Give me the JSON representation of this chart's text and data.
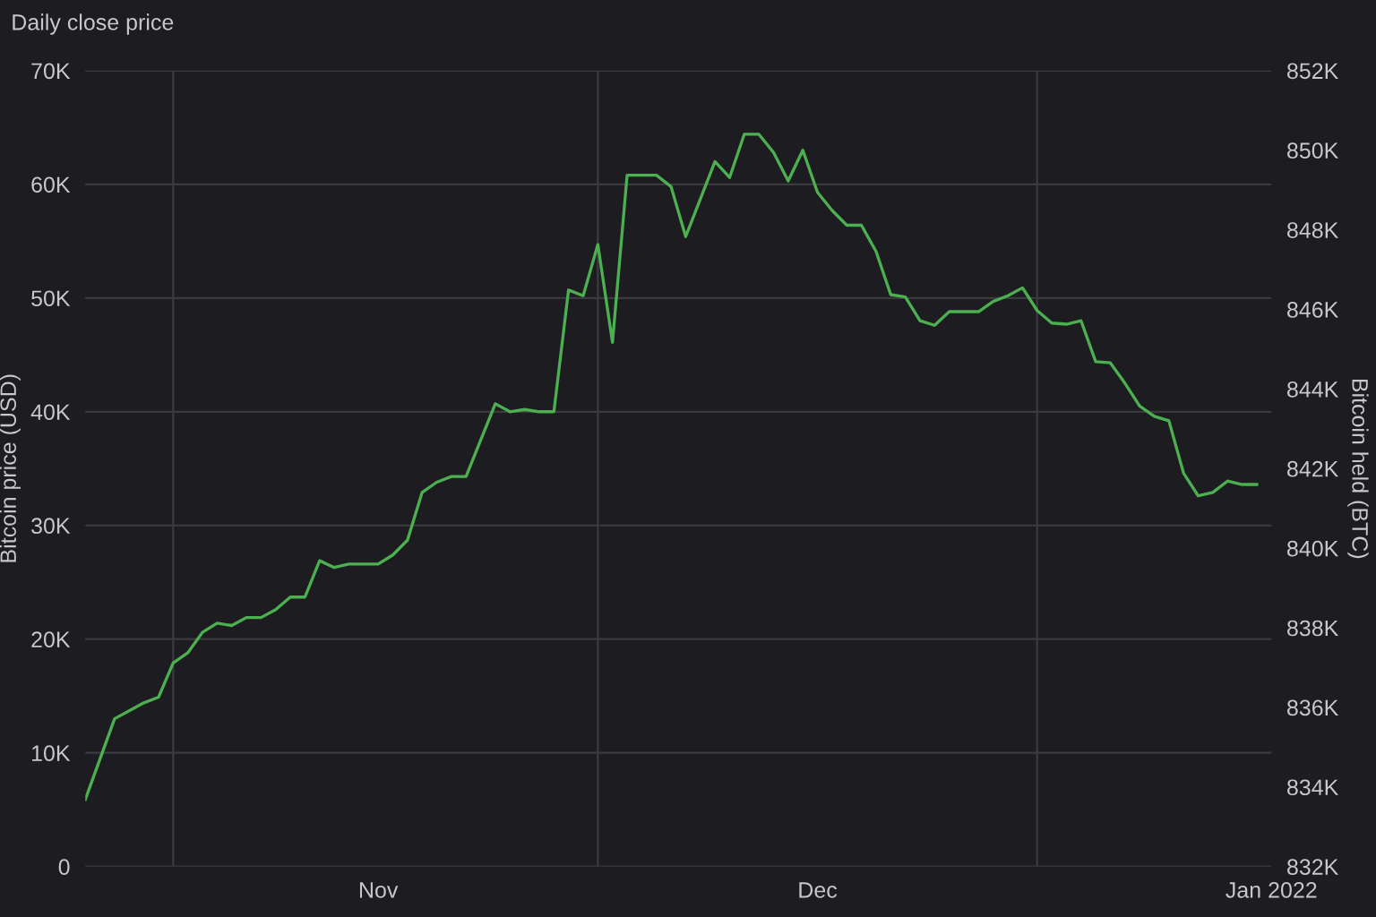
{
  "chart_data": {
    "type": "line",
    "title": "Daily close price",
    "ylabel": "Bitcoin price (USD)",
    "y2label": "Bitcoin held (BTC)",
    "x": [
      "2021-10-12",
      "2021-10-14",
      "2021-10-16",
      "2021-10-17",
      "2021-10-18",
      "2021-10-19",
      "2021-10-20",
      "2021-10-21",
      "2021-10-22",
      "2021-10-23",
      "2021-10-24",
      "2021-10-25",
      "2021-10-26",
      "2021-10-27",
      "2021-10-28",
      "2021-10-29",
      "2021-10-30",
      "2021-11-01",
      "2021-11-02",
      "2021-11-03",
      "2021-11-04",
      "2021-11-05",
      "2021-11-06",
      "2021-11-07",
      "2021-11-09",
      "2021-11-10",
      "2021-11-11",
      "2021-11-12",
      "2021-11-13",
      "2021-11-14",
      "2021-11-15",
      "2021-11-16",
      "2021-11-17",
      "2021-11-18",
      "2021-11-20",
      "2021-11-21",
      "2021-11-22",
      "2021-11-24",
      "2021-11-25",
      "2021-11-26",
      "2021-11-27",
      "2021-11-28",
      "2021-11-29",
      "2021-11-30",
      "2021-12-01",
      "2021-12-02",
      "2021-12-03",
      "2021-12-04",
      "2021-12-05",
      "2021-12-06",
      "2021-12-07",
      "2021-12-08",
      "2021-12-09",
      "2021-12-10",
      "2021-12-12",
      "2021-12-13",
      "2021-12-14",
      "2021-12-15",
      "2021-12-16",
      "2021-12-17",
      "2021-12-18",
      "2021-12-19",
      "2021-12-20",
      "2021-12-21",
      "2021-12-22",
      "2021-12-23",
      "2021-12-24",
      "2021-12-25",
      "2021-12-26",
      "2021-12-27",
      "2021-12-28",
      "2021-12-29",
      "2021-12-30",
      "2021-12-31"
    ],
    "series": [
      {
        "color": "#4caf50",
        "values": [
          5900,
          13000,
          14400,
          14900,
          17900,
          18800,
          20600,
          21400,
          21200,
          21900,
          21900,
          22600,
          23700,
          23700,
          26900,
          26300,
          26600,
          26600,
          27400,
          28700,
          32900,
          33800,
          34300,
          34300,
          40700,
          40000,
          40200,
          40000,
          40000,
          50700,
          50200,
          54700,
          46100,
          60800,
          60800,
          59800,
          55400,
          62000,
          60600,
          64400,
          64400,
          62800,
          60300,
          63000,
          59300,
          57700,
          56400,
          56400,
          54100,
          50300,
          50100,
          48000,
          47600,
          48800,
          48800,
          49700,
          50200,
          50900,
          48900,
          47800,
          47700,
          48000,
          44400,
          44300,
          42500,
          40500,
          39600,
          39200,
          34600,
          32600,
          32900,
          33900,
          33600,
          33600
        ]
      }
    ],
    "xlim": [
      "2021-10-12",
      "2022-01-01"
    ],
    "xticks": [
      {
        "value": "2021-10-18",
        "label": null
      },
      {
        "value": "2021-11-01",
        "label": "Nov"
      },
      {
        "value": "2021-11-16",
        "label": null
      },
      {
        "value": "2021-12-01",
        "label": "Dec"
      },
      {
        "value": "2021-12-16",
        "label": null
      },
      {
        "value": "2022-01-01",
        "label": "Jan 2022"
      }
    ],
    "ylim": [
      0,
      70000
    ],
    "yticks": [
      0,
      {
        "value": 10000,
        "label": "10K"
      },
      {
        "value": 20000,
        "label": "20K"
      },
      {
        "value": 30000,
        "label": "30K"
      },
      {
        "value": 40000,
        "label": "40K"
      },
      {
        "value": 50000,
        "label": "50K"
      },
      {
        "value": 60000,
        "label": "60K"
      },
      {
        "value": 70000,
        "label": "70K"
      }
    ],
    "y2lim": [
      832000,
      852000
    ],
    "y2ticks": [
      {
        "value": 832000,
        "label": "832K"
      },
      {
        "value": 834000,
        "label": "834K"
      },
      {
        "value": 836000,
        "label": "836K"
      },
      {
        "value": 838000,
        "label": "838K"
      },
      {
        "value": 840000,
        "label": "840K"
      },
      {
        "value": 842000,
        "label": "842K"
      },
      {
        "value": 844000,
        "label": "844K"
      },
      {
        "value": 846000,
        "label": "846K"
      },
      {
        "value": 848000,
        "label": "848K"
      },
      {
        "value": 850000,
        "label": "850K"
      },
      {
        "value": 852000,
        "label": "852K"
      }
    ],
    "grid": true,
    "line_style": "solid",
    "marker": "none"
  }
}
